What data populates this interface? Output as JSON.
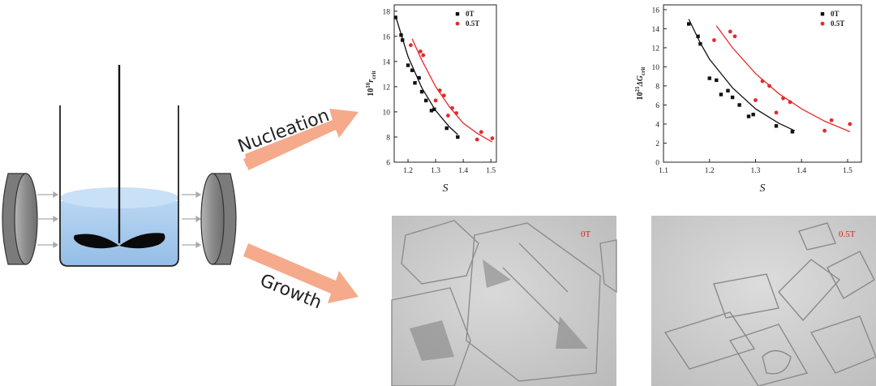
{
  "arrows": {
    "nucleation_label": "Nucleation",
    "growth_label": "Growth"
  },
  "colors": {
    "arrow": "#f4a98a",
    "liquid": "#a9cdee",
    "liquid_top": "#c7e0f6",
    "magnet": "#8a8a8a",
    "series_0T": "#111111",
    "series_05T": "#e52a2a"
  },
  "icons": [
    "beaker-vessel",
    "stirrer-impeller",
    "magnet-pole-left",
    "magnet-pole-right"
  ],
  "chart_data": [
    {
      "type": "scatter",
      "title": "",
      "xlabel": "S",
      "ylabel": "10^10 r_crit",
      "ylabel_base": "10",
      "ylabel_exp": "10",
      "ylabel_sym": "r",
      "ylabel_sub": "crit",
      "xlim": [
        1.15,
        1.52
      ],
      "ylim": [
        6,
        18.5
      ],
      "xticks": [
        1.2,
        1.3,
        1.4,
        1.5
      ],
      "yticks": [
        6,
        8,
        10,
        12,
        14,
        16,
        18
      ],
      "legend": "top-right",
      "grid": false,
      "series": [
        {
          "name": "0T",
          "marker": "square",
          "color": "#111111",
          "points": [
            [
              1.155,
              17.5
            ],
            [
              1.175,
              16.1
            ],
            [
              1.18,
              15.7
            ],
            [
              1.2,
              13.7
            ],
            [
              1.215,
              13.3
            ],
            [
              1.225,
              12.3
            ],
            [
              1.24,
              12.7
            ],
            [
              1.25,
              11.6
            ],
            [
              1.265,
              10.9
            ],
            [
              1.285,
              10.1
            ],
            [
              1.295,
              10.2
            ],
            [
              1.34,
              8.7
            ],
            [
              1.38,
              8.0
            ]
          ],
          "fit": [
            [
              1.155,
              17.6
            ],
            [
              1.2,
              14.4
            ],
            [
              1.25,
              11.9
            ],
            [
              1.3,
              10.1
            ],
            [
              1.35,
              8.8
            ],
            [
              1.38,
              8.2
            ]
          ]
        },
        {
          "name": "0.5T",
          "marker": "circle",
          "color": "#e52a2a",
          "points": [
            [
              1.21,
              15.3
            ],
            [
              1.245,
              14.8
            ],
            [
              1.255,
              14.5
            ],
            [
              1.3,
              10.9
            ],
            [
              1.315,
              11.7
            ],
            [
              1.33,
              11.3
            ],
            [
              1.345,
              9.7
            ],
            [
              1.36,
              10.3
            ],
            [
              1.375,
              9.9
            ],
            [
              1.45,
              7.8
            ],
            [
              1.465,
              8.4
            ],
            [
              1.505,
              7.9
            ]
          ],
          "fit": [
            [
              1.215,
              15.8
            ],
            [
              1.25,
              14.1
            ],
            [
              1.3,
              12.0
            ],
            [
              1.35,
              10.4
            ],
            [
              1.4,
              9.1
            ],
            [
              1.45,
              8.3
            ],
            [
              1.505,
              7.6
            ]
          ]
        }
      ]
    },
    {
      "type": "scatter",
      "title": "",
      "xlabel": "S",
      "ylabel": "10^21 ΔG_crit",
      "ylabel_base": "10",
      "ylabel_exp": "21",
      "ylabel_sym": "ΔG",
      "ylabel_sub": "crit",
      "xlim": [
        1.1,
        1.53
      ],
      "ylim": [
        0,
        16.5
      ],
      "xticks": [
        1.1,
        1.2,
        1.3,
        1.4,
        1.5
      ],
      "yticks": [
        0,
        2,
        4,
        6,
        8,
        10,
        12,
        14,
        16
      ],
      "legend": "top-right",
      "grid": false,
      "series": [
        {
          "name": "0T",
          "marker": "square",
          "color": "#111111",
          "points": [
            [
              1.155,
              14.5
            ],
            [
              1.175,
              13.2
            ],
            [
              1.18,
              12.4
            ],
            [
              1.2,
              8.8
            ],
            [
              1.215,
              8.6
            ],
            [
              1.225,
              7.1
            ],
            [
              1.24,
              7.5
            ],
            [
              1.25,
              6.8
            ],
            [
              1.265,
              6.0
            ],
            [
              1.285,
              4.8
            ],
            [
              1.295,
              5.0
            ],
            [
              1.345,
              3.8
            ],
            [
              1.38,
              3.2
            ]
          ],
          "fit": [
            [
              1.155,
              15.0
            ],
            [
              1.18,
              12.5
            ],
            [
              1.2,
              10.8
            ],
            [
              1.25,
              7.8
            ],
            [
              1.3,
              5.6
            ],
            [
              1.35,
              4.1
            ],
            [
              1.385,
              3.3
            ]
          ]
        },
        {
          "name": "0.5T",
          "marker": "circle",
          "color": "#e52a2a",
          "points": [
            [
              1.21,
              12.8
            ],
            [
              1.245,
              13.7
            ],
            [
              1.255,
              13.2
            ],
            [
              1.3,
              6.5
            ],
            [
              1.315,
              8.5
            ],
            [
              1.33,
              8.0
            ],
            [
              1.345,
              5.2
            ],
            [
              1.36,
              6.7
            ],
            [
              1.375,
              6.3
            ],
            [
              1.45,
              3.3
            ],
            [
              1.465,
              4.4
            ],
            [
              1.505,
              4.0
            ]
          ],
          "fit": [
            [
              1.215,
              14.3
            ],
            [
              1.25,
              12.0
            ],
            [
              1.3,
              9.3
            ],
            [
              1.35,
              7.2
            ],
            [
              1.4,
              5.6
            ],
            [
              1.45,
              4.3
            ],
            [
              1.505,
              3.2
            ]
          ]
        }
      ]
    }
  ],
  "micrographs": [
    {
      "label": "0T"
    },
    {
      "label": "0.5T"
    }
  ]
}
